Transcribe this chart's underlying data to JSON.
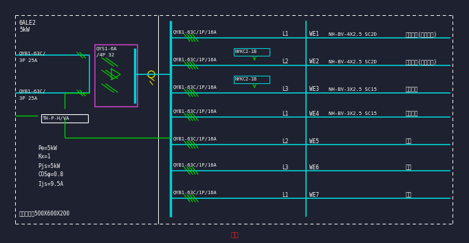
{
  "bg_color": "#1e2130",
  "cyan": "#00d0d0",
  "green": "#00cc00",
  "magenta": "#cc44cc",
  "yellow": "#cccc00",
  "white": "#ffffff",
  "red": "#dd2222",
  "title": "三版",
  "rows": [
    {
      "cb": "QYB1-63C/1P/16A",
      "phase": "L1",
      "we": "WE1",
      "cable": "NH-BV-4X2.5 SC2D",
      "load": "应急照明(消防控制)",
      "nykc": "NYKC2-1B"
    },
    {
      "cb": "QYB1-63C/1P/16A",
      "phase": "L2",
      "we": "WE2",
      "cable": "NH-BV-4X2.5 SC2D",
      "load": "应急照明(消防控制)",
      "nykc": "NYKC2-1B"
    },
    {
      "cb": "QYB1-63C/1P/16A",
      "phase": "L3",
      "we": "WE3",
      "cable": "NH-BV-3X2.5 SC15",
      "load": "疏散照明",
      "nykc": null
    },
    {
      "cb": "QYB1-63C/1P/16A",
      "phase": "L1",
      "we": "WE4",
      "cable": "NH-BV-3X2.5 SC15",
      "load": "疏散照明",
      "nykc": null
    },
    {
      "cb": "QYB1-63C/1P/16A",
      "phase": "L2",
      "we": "WE5",
      "cable": "",
      "load": "备用",
      "nykc": null
    },
    {
      "cb": "QYB1-63C/1P/16A",
      "phase": "L3",
      "we": "WE6",
      "cable": "",
      "load": "备用",
      "nykc": null
    },
    {
      "cb": "QYB1-63C/1P/16A",
      "phase": "L1",
      "we": "WE7",
      "cable": "",
      "load": "备用",
      "nykc": null
    }
  ]
}
